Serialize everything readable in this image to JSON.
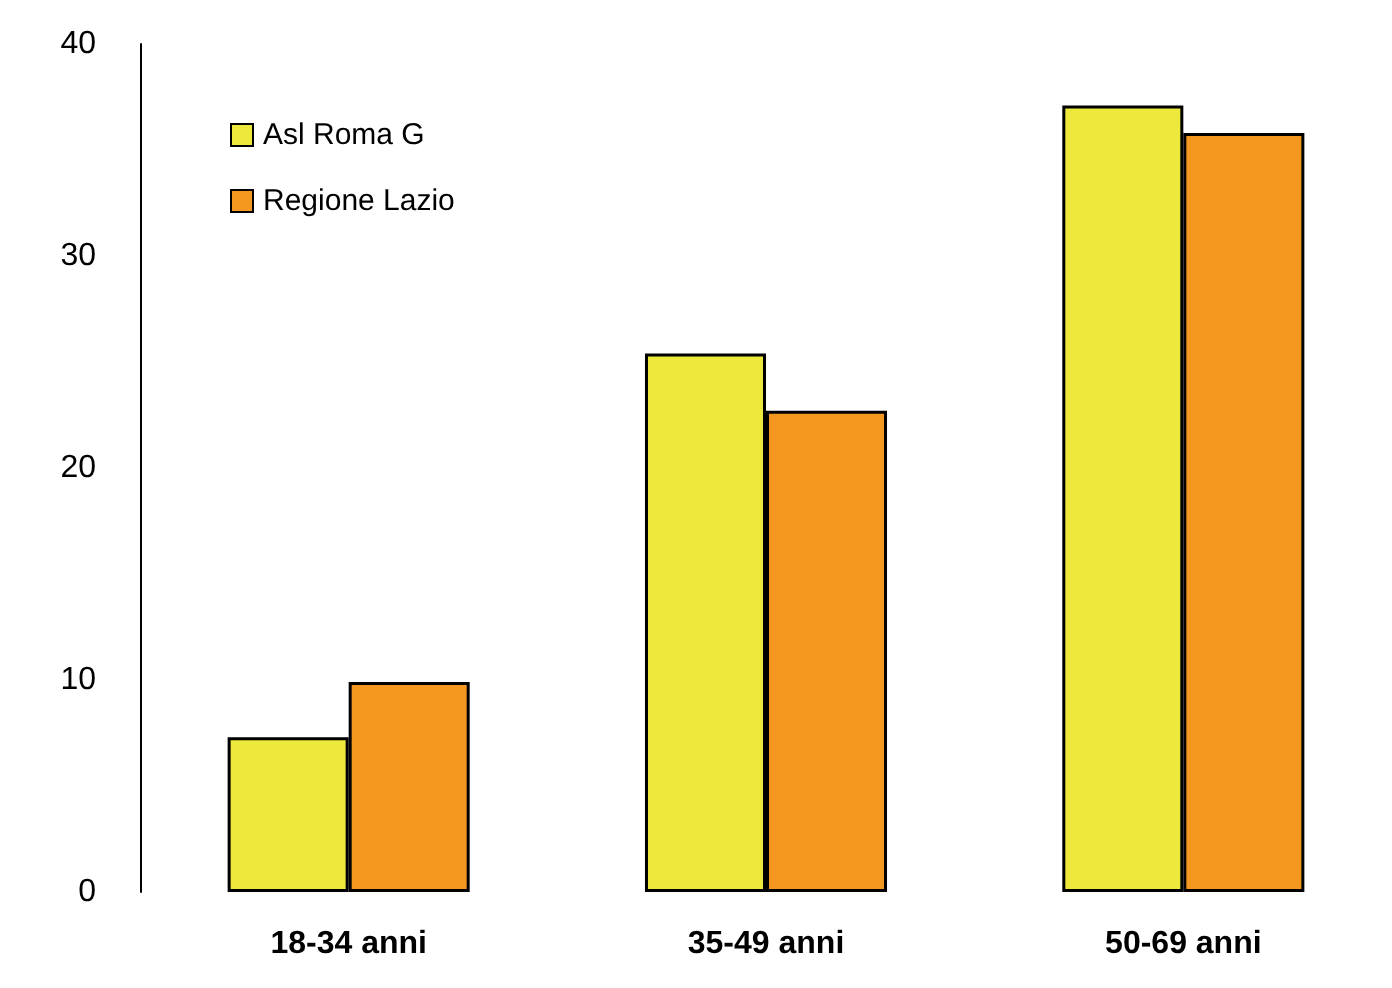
{
  "chart_data": {
    "type": "bar",
    "categories": [
      "18-34 anni",
      "35-49 anni",
      "50-69 anni"
    ],
    "series": [
      {
        "name": "Asl Roma G",
        "color": "#ece93c",
        "values": [
          7.3,
          25.4,
          37.1
        ]
      },
      {
        "name": "Regione Lazio",
        "color": "#f39720",
        "values": [
          9.9,
          22.7,
          35.8
        ]
      }
    ],
    "ylim": [
      0,
      40
    ],
    "yticks": [
      0,
      10,
      20,
      30,
      40
    ],
    "grid": false,
    "legend": "top left"
  }
}
